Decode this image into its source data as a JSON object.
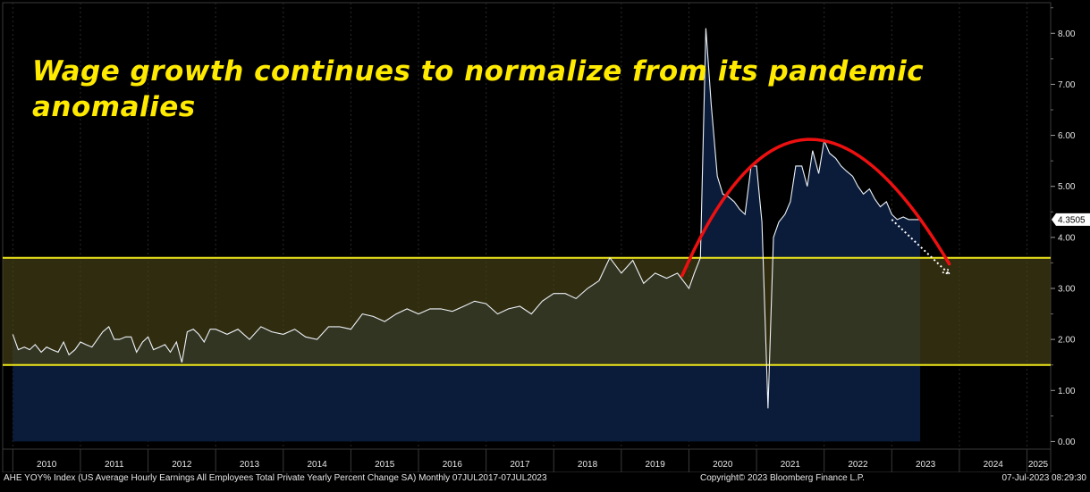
{
  "chart_data": {
    "type": "line",
    "title": "Wage growth continues to normalize from its pandemic anomalies",
    "series": [
      {
        "name": "AHE YOY% Index",
        "x": [
          2010.0,
          2010.08,
          2010.17,
          2010.25,
          2010.33,
          2010.42,
          2010.5,
          2010.58,
          2010.67,
          2010.75,
          2010.83,
          2010.92,
          2011.0,
          2011.08,
          2011.17,
          2011.25,
          2011.33,
          2011.42,
          2011.5,
          2011.58,
          2011.67,
          2011.75,
          2011.83,
          2011.92,
          2012.0,
          2012.08,
          2012.17,
          2012.25,
          2012.33,
          2012.42,
          2012.5,
          2012.58,
          2012.67,
          2012.75,
          2012.83,
          2012.92,
          2013.0,
          2013.17,
          2013.33,
          2013.5,
          2013.67,
          2013.83,
          2014.0,
          2014.17,
          2014.33,
          2014.5,
          2014.67,
          2014.83,
          2015.0,
          2015.17,
          2015.33,
          2015.5,
          2015.67,
          2015.83,
          2016.0,
          2016.17,
          2016.33,
          2016.5,
          2016.67,
          2016.83,
          2017.0,
          2017.17,
          2017.33,
          2017.5,
          2017.67,
          2017.83,
          2018.0,
          2018.17,
          2018.33,
          2018.5,
          2018.67,
          2018.83,
          2019.0,
          2019.17,
          2019.33,
          2019.5,
          2019.67,
          2019.83,
          2020.0,
          2020.08,
          2020.17,
          2020.25,
          2020.33,
          2020.42,
          2020.5,
          2020.58,
          2020.67,
          2020.75,
          2020.83,
          2020.92,
          2021.0,
          2021.08,
          2021.17,
          2021.25,
          2021.33,
          2021.42,
          2021.5,
          2021.58,
          2021.67,
          2021.75,
          2021.83,
          2021.92,
          2022.0,
          2022.08,
          2022.17,
          2022.25,
          2022.33,
          2022.42,
          2022.5,
          2022.58,
          2022.67,
          2022.75,
          2022.83,
          2022.92,
          2023.0,
          2023.08,
          2023.17,
          2023.25,
          2023.33,
          2023.42
        ],
        "values": [
          2.1,
          1.8,
          1.85,
          1.8,
          1.9,
          1.75,
          1.85,
          1.8,
          1.75,
          1.95,
          1.7,
          1.8,
          1.95,
          1.9,
          1.85,
          2.0,
          2.15,
          2.25,
          2.0,
          2.0,
          2.05,
          2.05,
          1.75,
          1.95,
          2.05,
          1.8,
          1.85,
          1.9,
          1.75,
          1.95,
          1.55,
          2.15,
          2.2,
          2.1,
          1.95,
          2.2,
          2.2,
          2.1,
          2.2,
          2.0,
          2.25,
          2.15,
          2.1,
          2.2,
          2.05,
          2.0,
          2.25,
          2.25,
          2.2,
          2.5,
          2.45,
          2.35,
          2.5,
          2.6,
          2.5,
          2.6,
          2.6,
          2.55,
          2.65,
          2.75,
          2.7,
          2.5,
          2.6,
          2.65,
          2.5,
          2.75,
          2.9,
          2.9,
          2.8,
          3.0,
          3.15,
          3.6,
          3.3,
          3.55,
          3.1,
          3.3,
          3.2,
          3.3,
          3.0,
          3.3,
          3.6,
          8.1,
          6.6,
          5.2,
          4.85,
          4.8,
          4.7,
          4.55,
          4.45,
          5.4,
          5.4,
          4.3,
          0.65,
          4.0,
          4.3,
          4.45,
          4.7,
          5.4,
          5.4,
          5.0,
          5.7,
          5.25,
          5.9,
          5.65,
          5.55,
          5.4,
          5.3,
          5.2,
          5.0,
          4.85,
          4.95,
          4.75,
          4.6,
          4.7,
          4.45,
          4.35,
          4.4,
          4.35,
          4.35,
          4.35
        ]
      }
    ],
    "last_value_label": "4.3505",
    "ylim": [
      -0.15,
      8.6
    ],
    "y_ticks": [
      "0.00",
      "1.00",
      "2.00",
      "3.00",
      "4.00",
      "5.00",
      "6.00",
      "7.00",
      "8.00"
    ],
    "x_ticks": [
      "2010",
      "2011",
      "2012",
      "2013",
      "2014",
      "2015",
      "2016",
      "2017",
      "2018",
      "2019",
      "2020",
      "2021",
      "2022",
      "2023",
      "2024",
      "2025"
    ],
    "band": {
      "lower": 1.5,
      "upper": 3.6
    },
    "annotation_arc": {
      "start": [
        2019.9,
        3.25
      ],
      "peak": [
        2021.75,
        5.92
      ],
      "end": [
        2023.85,
        3.48
      ]
    },
    "projection_arrow": {
      "start": [
        2023.0,
        4.35
      ],
      "end": [
        2023.85,
        3.28
      ]
    },
    "colors": {
      "line": "#eef3f8",
      "area": "#0b1b3a",
      "band_fill": "#4a4417",
      "band_line": "#f0e81a",
      "arc": "#ee1010",
      "title": "#ffea00",
      "axis_text": "#e6e6e6"
    }
  },
  "footer": {
    "source": "AHE YOY% Index (US Average Hourly Earnings All Employees Total Private Yearly Percent Change SA)  Monthly 07JUL2017-07JUL2023",
    "copyright": "Copyright© 2023 Bloomberg Finance L.P.",
    "timestamp": "07-Jul-2023 08:29:30"
  }
}
